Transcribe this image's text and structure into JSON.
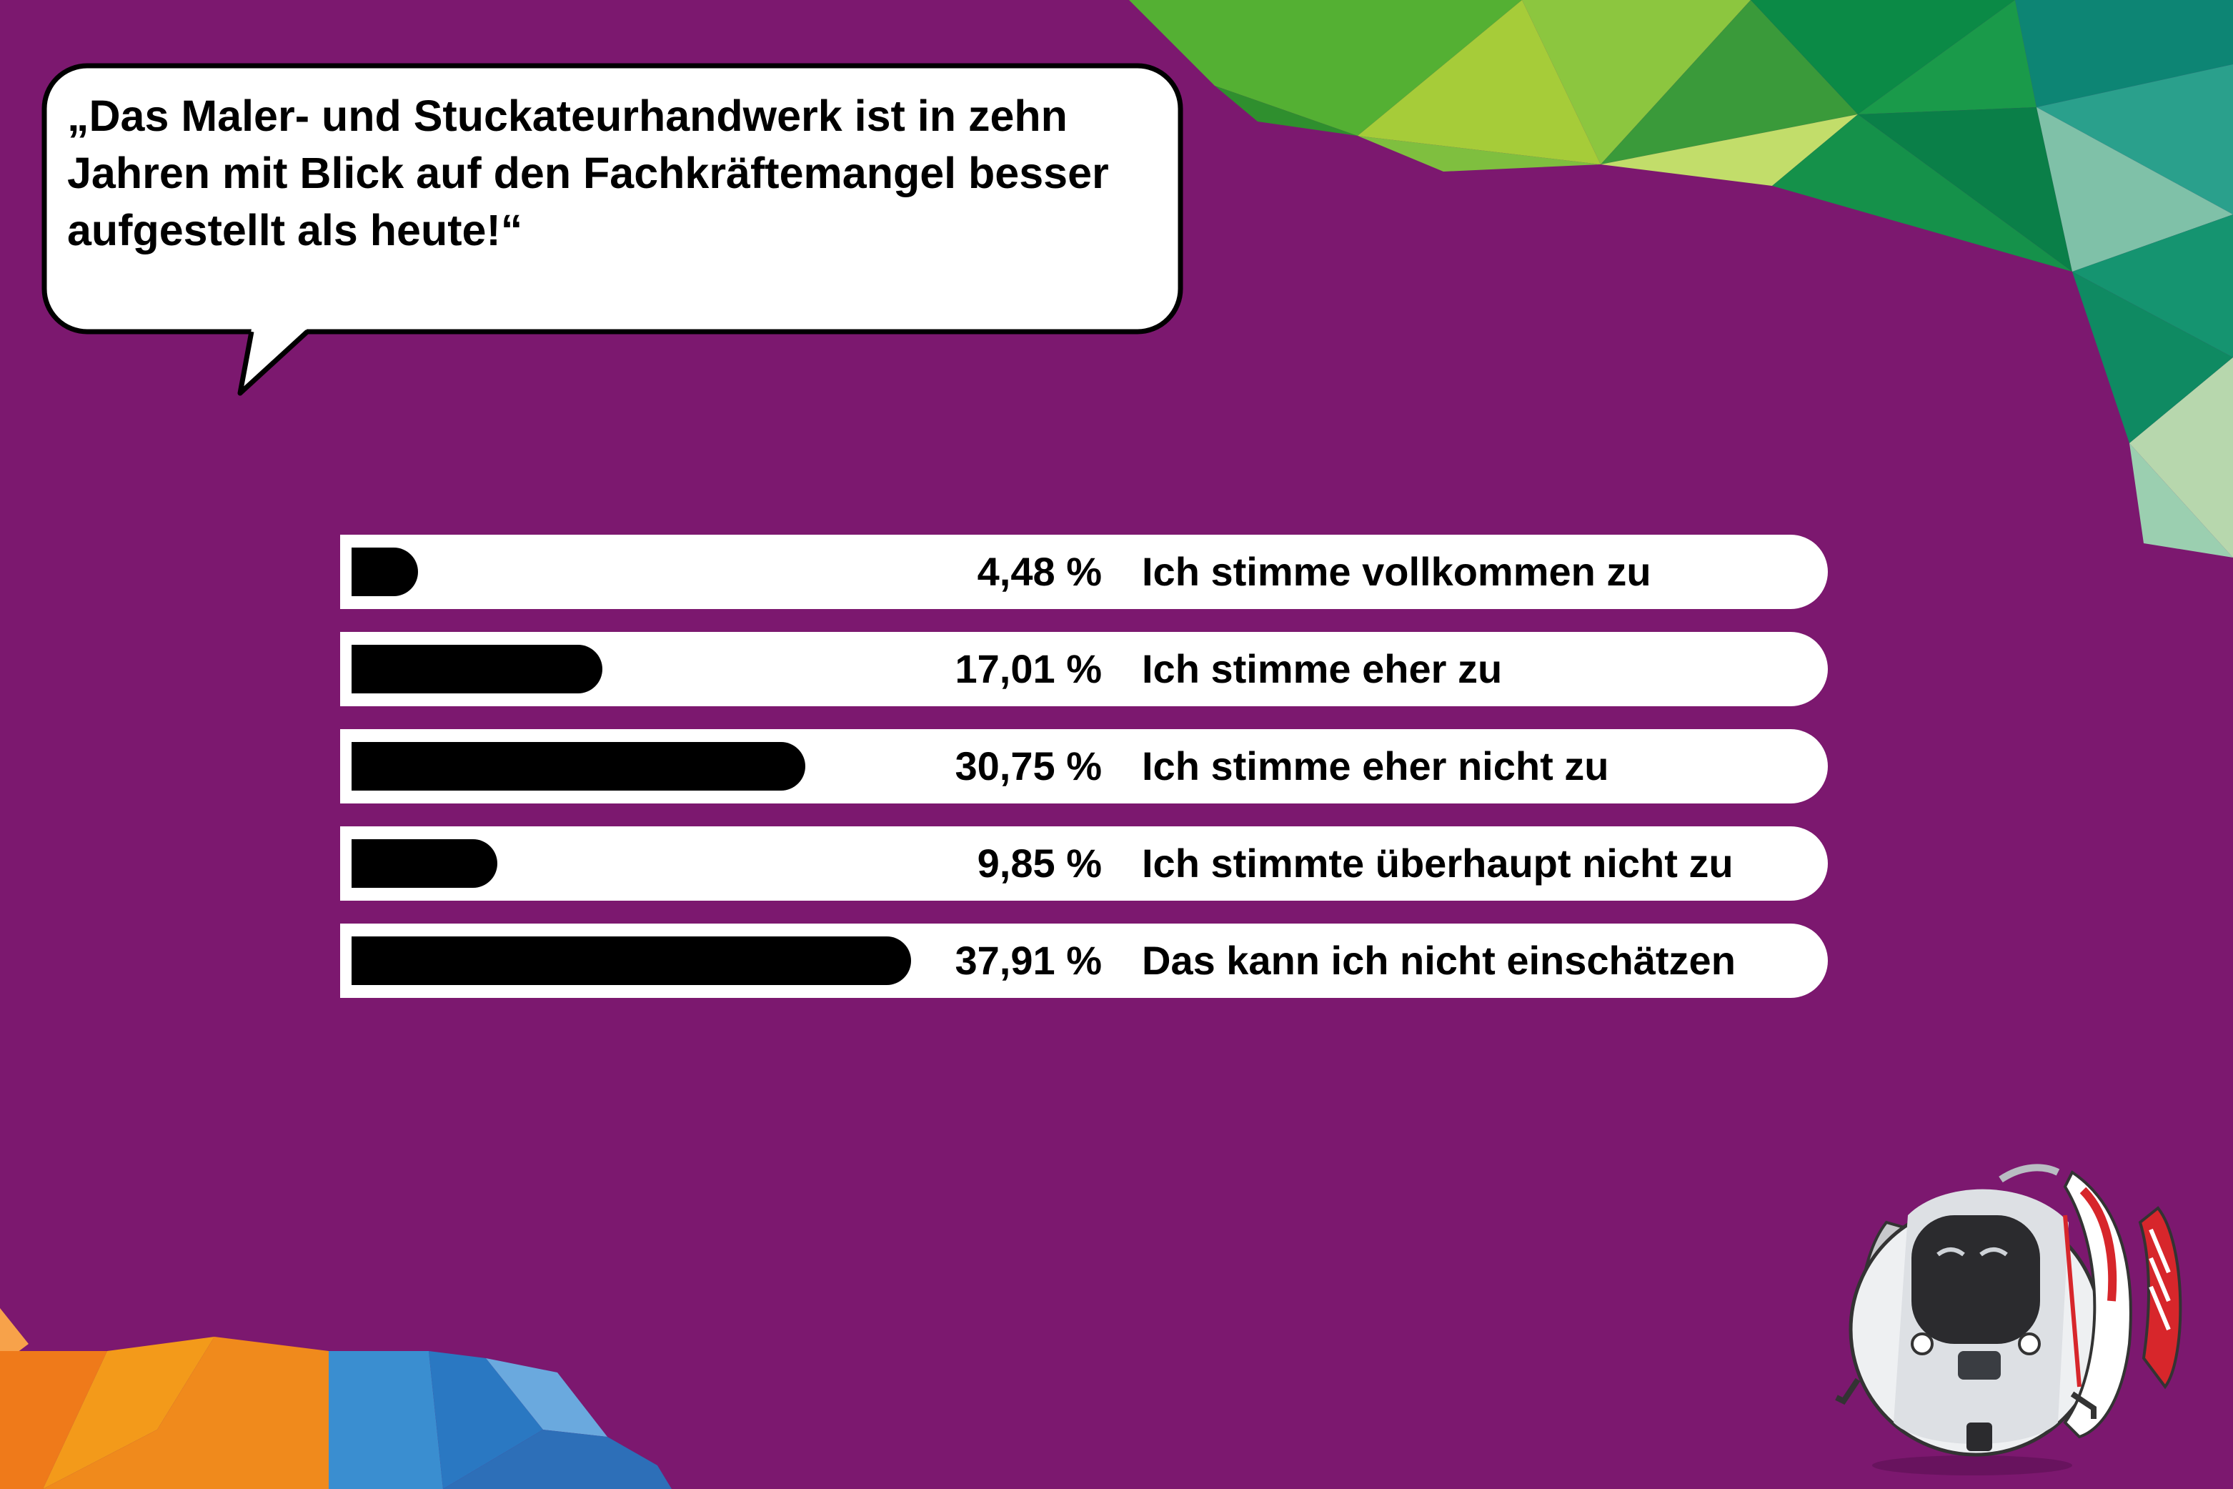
{
  "quote": "„Das Maler- und Stuckateurhandwerk ist in zehn Jahren mit Blick auf den Fachkräftemangel besser aufgestellt als heute!“",
  "colors": {
    "background": "#7c186f",
    "bar": "#000000",
    "track": "#ffffff"
  },
  "chart_data": {
    "type": "bar",
    "orientation": "horizontal",
    "title": "„Das Maler- und Stuckateurhandwerk ist in zehn Jahren mit Blick auf den Fachkräftemangel besser aufgestellt als heute!“",
    "xlabel": "",
    "ylabel": "",
    "xlim": [
      0,
      100
    ],
    "grid": false,
    "legend": "none",
    "categories": [
      "Ich stimme vollkommen zu",
      "Ich stimme eher zu",
      "Ich stimme eher nicht zu",
      "Ich stimmte überhaupt nicht zu",
      "Das kann ich nicht einschätzen"
    ],
    "values": [
      4.48,
      17.01,
      30.75,
      9.85,
      37.91
    ],
    "value_labels": [
      "4,48 %",
      "17,01 %",
      "30,75 %",
      "9,85 %",
      "37,91 %"
    ]
  }
}
